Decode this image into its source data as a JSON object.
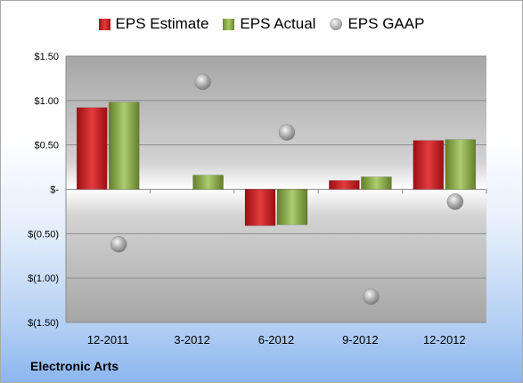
{
  "footer": {
    "company": "Electronic Arts"
  },
  "legend": {
    "estimate_label": "EPS Estimate",
    "actual_label": "EPS Actual",
    "gaap_label": "EPS GAAP"
  },
  "colors": {
    "estimate": "#c8242b",
    "actual": "#8fb04a",
    "gaap": "#a6a6a6"
  },
  "chart_data": {
    "type": "bar",
    "categories": [
      "12-2011",
      "3-2012",
      "6-2012",
      "9-2012",
      "12-2012"
    ],
    "series": [
      {
        "name": "EPS Estimate",
        "type": "bar",
        "values": [
          0.92,
          null,
          -0.41,
          0.1,
          0.55
        ]
      },
      {
        "name": "EPS Actual",
        "type": "bar",
        "values": [
          0.98,
          0.16,
          -0.4,
          0.14,
          0.56
        ]
      },
      {
        "name": "EPS GAAP",
        "type": "scatter",
        "values": [
          -0.62,
          1.21,
          0.64,
          -1.21,
          -0.14
        ]
      }
    ],
    "y_ticks": [
      1.5,
      1.0,
      0.5,
      0,
      -0.5,
      -1.0,
      -1.5
    ],
    "y_tick_labels": [
      "$1.50",
      "$1.00",
      "$0.50",
      "$-",
      "$(0.50)",
      "$(1.00)",
      "$(1.50)"
    ],
    "ylim": [
      -1.5,
      1.5
    ],
    "grid": true,
    "legend_position": "top"
  }
}
